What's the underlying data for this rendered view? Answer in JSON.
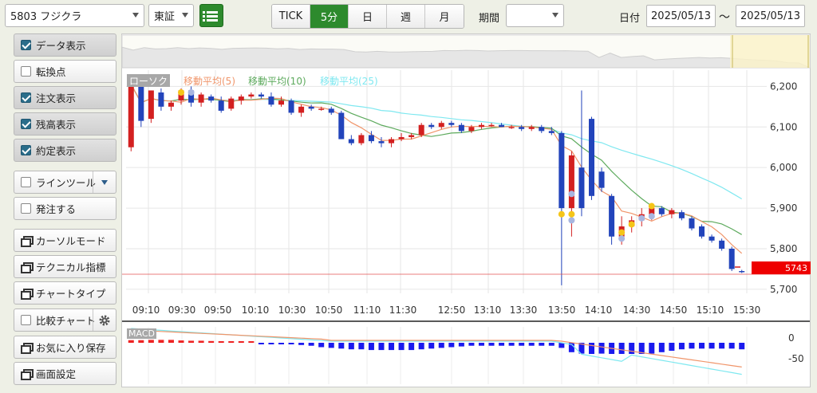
{
  "toolbar": {
    "stock": "5803 フジクラ",
    "market": "東証",
    "tabs": [
      {
        "label": "TICK",
        "active": false
      },
      {
        "label": "5分",
        "active": true
      },
      {
        "label": "日",
        "active": false
      },
      {
        "label": "週",
        "active": false
      },
      {
        "label": "月",
        "active": false
      }
    ],
    "period_label": "期間",
    "period_value": "",
    "date_label": "日付",
    "date_from": "2025/05/13",
    "date_sep": "〜",
    "date_to": "2025/05/13"
  },
  "sidebar": {
    "items": [
      {
        "label": "データ表示",
        "kind": "check",
        "checked": true
      },
      {
        "label": "転換点",
        "kind": "check",
        "checked": false
      },
      {
        "label": "注文表示",
        "kind": "check",
        "checked": true
      },
      {
        "label": "残高表示",
        "kind": "check",
        "checked": true
      },
      {
        "label": "約定表示",
        "kind": "check",
        "checked": true
      },
      {
        "label": "ラインツール",
        "kind": "check-drop",
        "checked": false
      },
      {
        "label": "発注する",
        "kind": "check",
        "checked": false
      },
      {
        "label": "カーソルモード",
        "kind": "window"
      },
      {
        "label": "テクニカル指標",
        "kind": "window"
      },
      {
        "label": "チャートタイプ",
        "kind": "window"
      },
      {
        "label": "比較チャート",
        "kind": "check-gear",
        "checked": false
      },
      {
        "label": "お気に入り保存",
        "kind": "window"
      },
      {
        "label": "画面設定",
        "kind": "window"
      }
    ]
  },
  "chart": {
    "legend": [
      {
        "label": "ローソク",
        "color": "#a0a0a0"
      },
      {
        "label": "移動平均(5)",
        "color": "#f0956a"
      },
      {
        "label": "移動平均(10)",
        "color": "#5daa5d"
      },
      {
        "label": "移動平均(25)",
        "color": "#7fe8f0"
      }
    ],
    "current_price": "5743",
    "macd_label": "MACD",
    "price_ticks": [
      "6,200",
      "6,100",
      "6,000",
      "5,900",
      "5,800",
      "5,700"
    ],
    "macd_ticks": [
      "0",
      "-50"
    ],
    "time_ticks": [
      "09:10",
      "09:30",
      "09:50",
      "10:10",
      "10:30",
      "10:50",
      "11:10",
      "11:30",
      "12:50",
      "13:10",
      "13:30",
      "13:50",
      "14:10",
      "14:30",
      "14:50",
      "15:10",
      "15:30"
    ]
  },
  "chart_data": {
    "type": "candlestick",
    "timeframe": "5min",
    "ylim": [
      5690,
      6240
    ],
    "colors": {
      "up": "#d32020",
      "down": "#2244bb",
      "ma5": "#f0956a",
      "ma10": "#5daa5d",
      "ma25": "#7fe8f0"
    },
    "candles": [
      {
        "o": 6050,
        "h": 6210,
        "l": 6040,
        "c": 6205
      },
      {
        "o": 6205,
        "h": 6210,
        "l": 6100,
        "c": 6115
      },
      {
        "o": 6120,
        "h": 6190,
        "l": 6110,
        "c": 6190
      },
      {
        "o": 6185,
        "h": 6195,
        "l": 6140,
        "c": 6150
      },
      {
        "o": 6150,
        "h": 6165,
        "l": 6140,
        "c": 6160
      },
      {
        "o": 6165,
        "h": 6195,
        "l": 6155,
        "c": 6190
      },
      {
        "o": 6190,
        "h": 6200,
        "l": 6150,
        "c": 6160
      },
      {
        "o": 6160,
        "h": 6185,
        "l": 6150,
        "c": 6180
      },
      {
        "o": 6175,
        "h": 6180,
        "l": 6160,
        "c": 6165
      },
      {
        "o": 6165,
        "h": 6175,
        "l": 6135,
        "c": 6140
      },
      {
        "o": 6145,
        "h": 6175,
        "l": 6140,
        "c": 6170
      },
      {
        "o": 6165,
        "h": 6180,
        "l": 6155,
        "c": 6175
      },
      {
        "o": 6175,
        "h": 6185,
        "l": 6170,
        "c": 6180
      },
      {
        "o": 6180,
        "h": 6185,
        "l": 6170,
        "c": 6175
      },
      {
        "o": 6175,
        "h": 6185,
        "l": 6150,
        "c": 6155
      },
      {
        "o": 6155,
        "h": 6175,
        "l": 6150,
        "c": 6165
      },
      {
        "o": 6165,
        "h": 6170,
        "l": 6130,
        "c": 6135
      },
      {
        "o": 6135,
        "h": 6155,
        "l": 6125,
        "c": 6150
      },
      {
        "o": 6150,
        "h": 6155,
        "l": 6140,
        "c": 6145
      },
      {
        "o": 6145,
        "h": 6150,
        "l": 6140,
        "c": 6145
      },
      {
        "o": 6145,
        "h": 6150,
        "l": 6130,
        "c": 6135
      },
      {
        "o": 6135,
        "h": 6140,
        "l": 6070,
        "c": 6070
      },
      {
        "o": 6070,
        "h": 6080,
        "l": 6055,
        "c": 6060
      },
      {
        "o": 6060,
        "h": 6085,
        "l": 6055,
        "c": 6080
      },
      {
        "o": 6080,
        "h": 6090,
        "l": 6060,
        "c": 6065
      },
      {
        "o": 6065,
        "h": 6075,
        "l": 6050,
        "c": 6060
      },
      {
        "o": 6060,
        "h": 6075,
        "l": 6050,
        "c": 6070
      },
      {
        "o": 6070,
        "h": 6085,
        "l": 6065,
        "c": 6075
      },
      {
        "o": 6075,
        "h": 6085,
        "l": 6070,
        "c": 6080
      },
      {
        "o": 6080,
        "h": 6110,
        "l": 6075,
        "c": 6105
      },
      {
        "o": 6105,
        "h": 6110,
        "l": 6095,
        "c": 6100
      },
      {
        "o": 6100,
        "h": 6115,
        "l": 6095,
        "c": 6110
      },
      {
        "o": 6110,
        "h": 6115,
        "l": 6100,
        "c": 6105
      },
      {
        "o": 6105,
        "h": 6110,
        "l": 6085,
        "c": 6090
      },
      {
        "o": 6090,
        "h": 6105,
        "l": 6085,
        "c": 6100
      },
      {
        "o": 6100,
        "h": 6110,
        "l": 6095,
        "c": 6105
      },
      {
        "o": 6105,
        "h": 6110,
        "l": 6100,
        "c": 6105
      },
      {
        "o": 6105,
        "h": 6110,
        "l": 6100,
        "c": 6100
      },
      {
        "o": 6100,
        "h": 6105,
        "l": 6095,
        "c": 6100
      },
      {
        "o": 6100,
        "h": 6105,
        "l": 6090,
        "c": 6095
      },
      {
        "o": 6095,
        "h": 6105,
        "l": 6090,
        "c": 6100
      },
      {
        "o": 6100,
        "h": 6105,
        "l": 6085,
        "c": 6090
      },
      {
        "o": 6090,
        "h": 6100,
        "l": 6080,
        "c": 6085
      },
      {
        "o": 6085,
        "h": 6090,
        "l": 5710,
        "c": 5900
      },
      {
        "o": 5900,
        "h": 6040,
        "l": 5830,
        "c": 6030
      },
      {
        "o": 6000,
        "h": 6190,
        "l": 5880,
        "c": 5900
      },
      {
        "o": 6120,
        "h": 6125,
        "l": 5920,
        "c": 5930
      },
      {
        "o": 5990,
        "h": 6000,
        "l": 5940,
        "c": 5950
      },
      {
        "o": 5930,
        "h": 5935,
        "l": 5810,
        "c": 5830
      },
      {
        "o": 5830,
        "h": 5880,
        "l": 5810,
        "c": 5855
      },
      {
        "o": 5855,
        "h": 5880,
        "l": 5840,
        "c": 5870
      },
      {
        "o": 5870,
        "h": 5900,
        "l": 5855,
        "c": 5885
      },
      {
        "o": 5885,
        "h": 5910,
        "l": 5870,
        "c": 5900
      },
      {
        "o": 5900,
        "h": 5905,
        "l": 5880,
        "c": 5885
      },
      {
        "o": 5885,
        "h": 5900,
        "l": 5875,
        "c": 5895
      },
      {
        "o": 5890,
        "h": 5895,
        "l": 5870,
        "c": 5875
      },
      {
        "o": 5875,
        "h": 5880,
        "l": 5845,
        "c": 5850
      },
      {
        "o": 5855,
        "h": 5860,
        "l": 5825,
        "c": 5830
      },
      {
        "o": 5830,
        "h": 5835,
        "l": 5815,
        "c": 5820
      },
      {
        "o": 5820,
        "h": 5825,
        "l": 5795,
        "c": 5800
      },
      {
        "o": 5800,
        "h": 5805,
        "l": 5745,
        "c": 5750
      },
      {
        "o": 5745,
        "h": 5748,
        "l": 5740,
        "c": 5743
      }
    ]
  }
}
